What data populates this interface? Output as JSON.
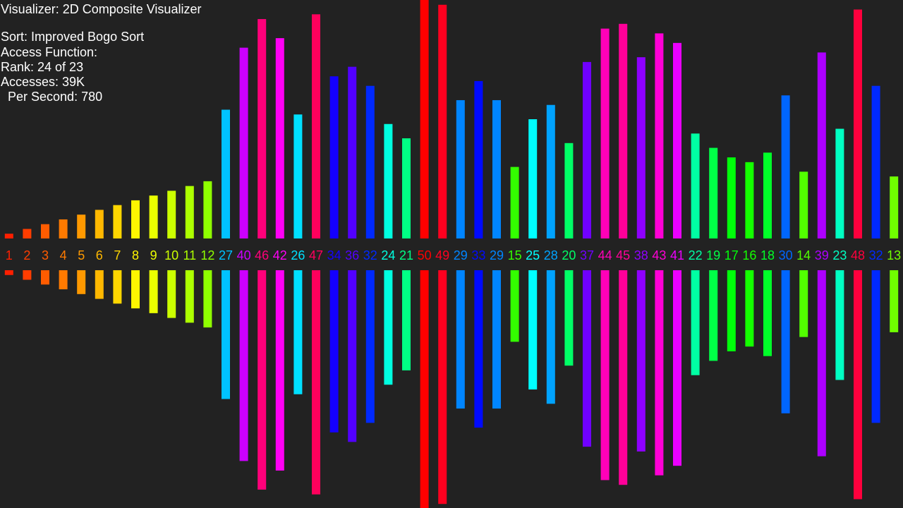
{
  "header": {
    "title": "Visualizer: 2D Composite Visualizer"
  },
  "info": {
    "sort": "Sort: Improved Bogo Sort",
    "access_function": "Access Function:",
    "rank": "Rank: 24 of 23",
    "accesses": "Accesses: 39K",
    "per_second": "  Per Second: 780"
  },
  "array": {
    "values": [
      1,
      2,
      3,
      4,
      5,
      6,
      7,
      8,
      9,
      10,
      11,
      12,
      27,
      40,
      46,
      42,
      26,
      47,
      34,
      36,
      32,
      24,
      21,
      50,
      49,
      29,
      33,
      29,
      15,
      25,
      28,
      20,
      37,
      44,
      45,
      38,
      43,
      41,
      22,
      19,
      17,
      16,
      18,
      30,
      14,
      39,
      23,
      48,
      32,
      13
    ],
    "max": 50
  }
}
